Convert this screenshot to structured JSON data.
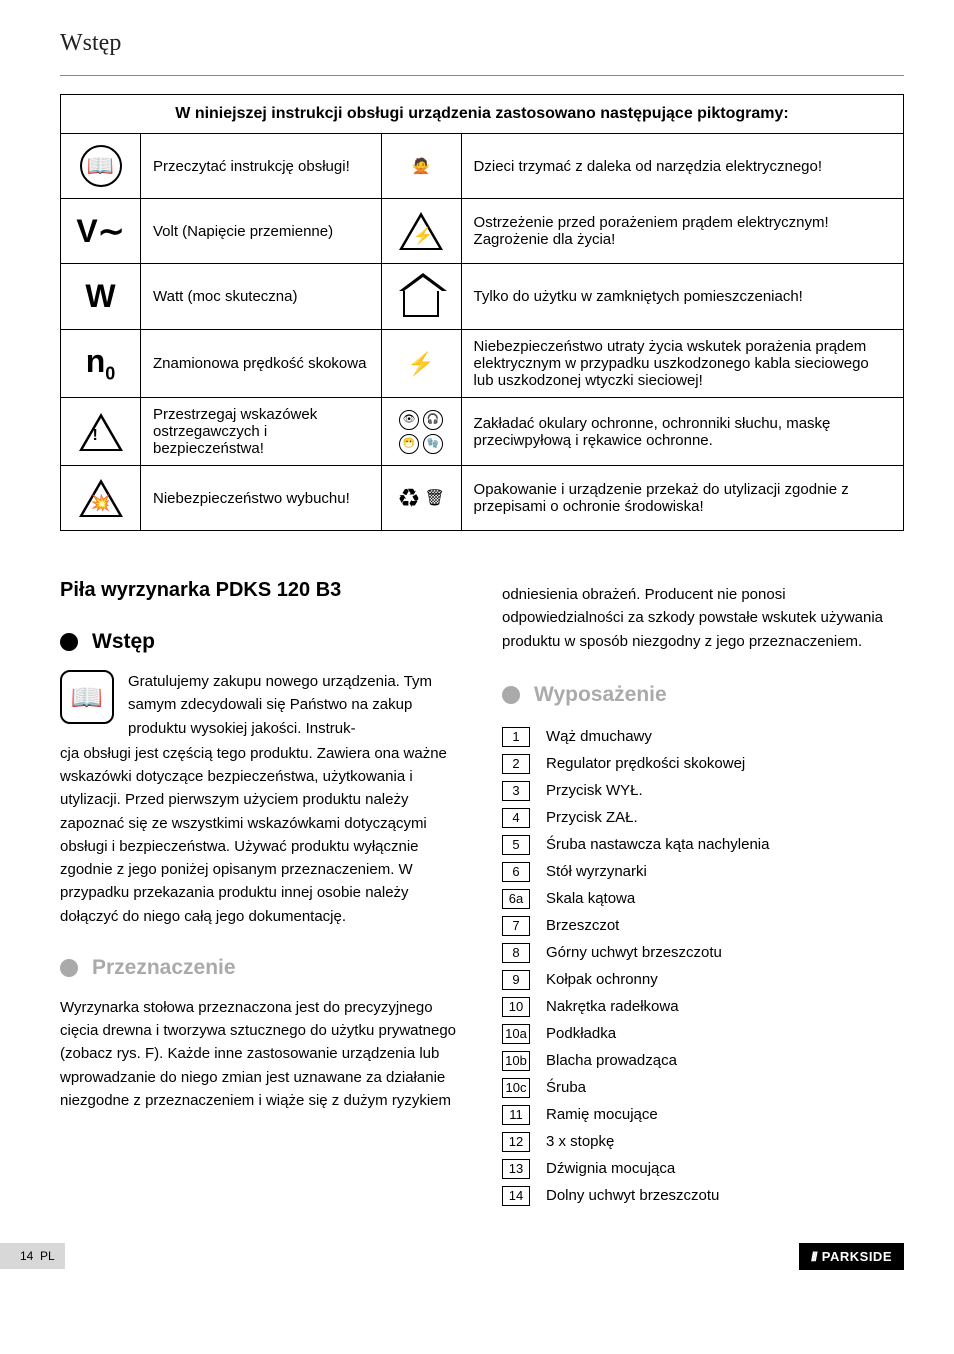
{
  "header": {
    "section_title": "Wstęp"
  },
  "table": {
    "caption": "W niniejszej instrukcji obsługi urządzenia zastosowano następujące piktogramy:",
    "rows": [
      {
        "left_icon": "manual-icon",
        "left_sym": "📖",
        "left_text": "Przeczytać instrukcję obsługi!",
        "right_icon": "children-icon",
        "right_sym": "🙅",
        "right_text": "Dzieci trzymać z daleka od narzędzia elektrycznego!"
      },
      {
        "left_icon": "volt-icon",
        "left_sym": "V∼",
        "left_text": "Volt (Napięcie przemienne)",
        "right_icon": "shock-icon",
        "right_sym": "⚡",
        "right_text": "Ostrzeżenie przed porażeniem prądem elektrycznym! Zagrożenie dla życia!"
      },
      {
        "left_icon": "watt-icon",
        "left_sym": "W",
        "left_text": "Watt (moc skuteczna)",
        "right_icon": "indoor-icon",
        "right_sym": "🏠",
        "right_text": "Tylko do użytku w zamkniętych pomieszczeniach!"
      },
      {
        "left_icon": "stroke-icon",
        "left_sym": "n",
        "left_sub": "0",
        "left_text": "Znamionowa prędkość skokowa",
        "right_icon": "cord-icon",
        "right_sym": "⚡",
        "right_text": "Niebezpieczeństwo utraty życia wskutek porażenia prądem elektrycznym w przypadku uszkodzonego kabla sieciowego lub uszkodzonej wtyczki sieciowej!"
      },
      {
        "left_icon": "warning-icon",
        "left_sym": "!",
        "left_text": "Przestrzegaj wskazówek ostrzegawczych i bezpieczeństwa!",
        "right_icon": "ppe-icon",
        "right_sym": "",
        "right_text": "Zakładać okulary ochronne, ochronniki słuchu, maskę przeciwpyłową i rękawice ochronne."
      },
      {
        "left_icon": "explosion-icon",
        "left_sym": "💥",
        "left_text": "Niebezpieczeństwo wybuchu!",
        "right_icon": "recycle-icon",
        "right_sym": "♻",
        "right_text": "Opakowanie i urządzenie przekaż do utylizacji zgodnie z przepisami o ochronie środowiska!"
      }
    ]
  },
  "product_title": "Piła wyrzynarka PDKS 120 B3",
  "sections": {
    "intro": {
      "title": "Wstęp"
    },
    "purpose": {
      "title": "Przeznaczenie"
    },
    "equipment": {
      "title": "Wyposażenie"
    }
  },
  "intro_lead": "Gratulujemy zakupu nowego urządzenia. Tym samym zdecydowali się Państwo na zakup produktu wysokiej jakości. Instruk-",
  "intro_body": "cja obsługi jest częścią tego produktu. Zawiera ona ważne wskazówki dotyczące bezpieczeństwa, użytkowania i utylizacji. Przed pierwszym użyciem produktu należy zapoznać się ze wszystkimi wskazówkami dotyczącymi obsługi i bezpieczeństwa. Używać produktu wyłącznie zgodnie z jego poniżej opisanym przeznaczeniem. W przypadku przekazania produktu innej osobie należy dołączyć do niego całą jego dokumentację.",
  "purpose_body": "Wyrzynarka stołowa przeznaczona jest do precyzyjnego cięcia drewna i tworzywa sztucznego do użytku prywatnego (zobacz rys. F). Każde inne zastosowanie urządzenia lub wprowadzanie do niego zmian jest uznawane za działanie niezgodne z przeznaczeniem i wiąże się z dużym ryzykiem",
  "purpose_cont": "odniesienia obrażeń. Producent nie ponosi odpowiedzialności za szkody powstałe wskutek używania produktu w sposób niezgodny z jego przeznaczeniem.",
  "equipment_items": [
    {
      "n": "1",
      "label": "Wąż dmuchawy"
    },
    {
      "n": "2",
      "label": "Regulator prędkości skokowej"
    },
    {
      "n": "3",
      "label": "Przycisk WYŁ."
    },
    {
      "n": "4",
      "label": "Przycisk ZAŁ."
    },
    {
      "n": "5",
      "label": "Śruba nastawcza kąta nachylenia"
    },
    {
      "n": "6",
      "label": "Stół wyrzynarki"
    },
    {
      "n": "6a",
      "label": "Skala kątowa"
    },
    {
      "n": "7",
      "label": "Brzeszczot"
    },
    {
      "n": "8",
      "label": "Górny uchwyt brzeszczotu"
    },
    {
      "n": "9",
      "label": "Kołpak ochronny"
    },
    {
      "n": "10",
      "label": "Nakrętka radełkowa"
    },
    {
      "n": "10a",
      "label": "Podkładka"
    },
    {
      "n": "10b",
      "label": "Blacha prowadząca"
    },
    {
      "n": "10c",
      "label": "Śruba"
    },
    {
      "n": "11",
      "label": "Ramię mocujące"
    },
    {
      "n": "12",
      "label": "3 x stopkę"
    },
    {
      "n": "13",
      "label": "Dźwignia mocująca"
    },
    {
      "n": "14",
      "label": "Dolny uchwyt brzeszczotu"
    }
  ],
  "footer": {
    "page": "14",
    "lang": "PL",
    "brand": "PARKSIDE"
  }
}
